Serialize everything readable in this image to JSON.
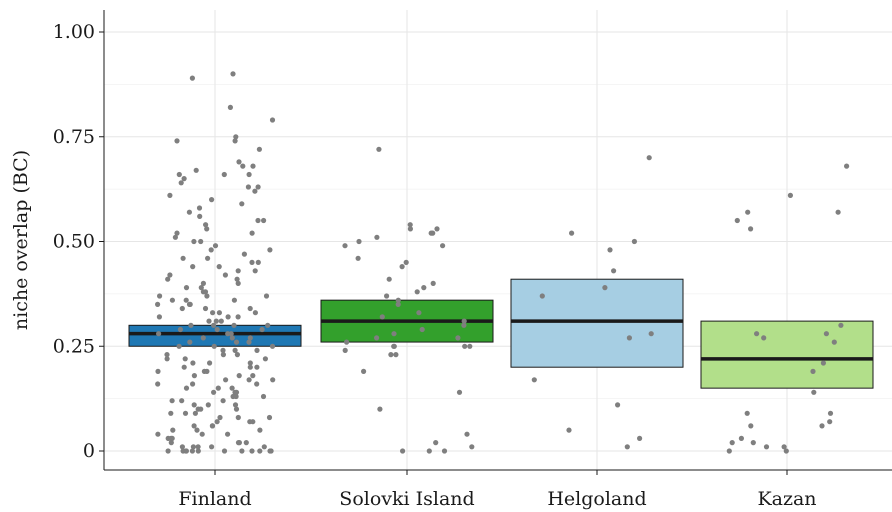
{
  "chart_data": {
    "type": "box",
    "title": "",
    "xlabel": "",
    "ylabel": "niche overlap (BC)",
    "ylim": [
      0,
      1
    ],
    "yticks": [
      {
        "value": 0,
        "label": "0"
      },
      {
        "value": 0.25,
        "label": "0.25"
      },
      {
        "value": 0.5,
        "label": "0.50"
      },
      {
        "value": 0.75,
        "label": "0.75"
      },
      {
        "value": 1.0,
        "label": "1.00"
      }
    ],
    "grid": true,
    "categories": [
      "Finland",
      "Solovki Island",
      "Helgoland",
      "Kazan"
    ],
    "series": [
      {
        "category": "Finland",
        "color": "#1f78b4",
        "q1": 0.25,
        "median": 0.28,
        "q3": 0.3,
        "points": [
          0.9,
          0.89,
          0.82,
          0.79,
          0.75,
          0.74,
          0.74,
          0.72,
          0.69,
          0.68,
          0.68,
          0.67,
          0.66,
          0.66,
          0.66,
          0.65,
          0.64,
          0.63,
          0.63,
          0.62,
          0.61,
          0.6,
          0.59,
          0.58,
          0.57,
          0.56,
          0.55,
          0.55,
          0.54,
          0.53,
          0.52,
          0.52,
          0.51,
          0.5,
          0.5,
          0.49,
          0.48,
          0.48,
          0.47,
          0.46,
          0.46,
          0.45,
          0.45,
          0.44,
          0.44,
          0.43,
          0.43,
          0.42,
          0.42,
          0.41,
          0.41,
          0.4,
          0.4,
          0.39,
          0.39,
          0.38,
          0.38,
          0.37,
          0.37,
          0.37,
          0.36,
          0.36,
          0.36,
          0.35,
          0.35,
          0.35,
          0.34,
          0.34,
          0.34,
          0.33,
          0.33,
          0.33,
          0.32,
          0.32,
          0.32,
          0.31,
          0.31,
          0.31,
          0.3,
          0.3,
          0.3,
          0.3,
          0.29,
          0.29,
          0.29,
          0.28,
          0.28,
          0.28,
          0.27,
          0.27,
          0.27,
          0.26,
          0.26,
          0.26,
          0.25,
          0.25,
          0.25,
          0.24,
          0.24,
          0.24,
          0.23,
          0.23,
          0.23,
          0.22,
          0.22,
          0.22,
          0.21,
          0.21,
          0.21,
          0.2,
          0.2,
          0.2,
          0.19,
          0.19,
          0.19,
          0.18,
          0.18,
          0.18,
          0.17,
          0.17,
          0.17,
          0.16,
          0.16,
          0.16,
          0.15,
          0.15,
          0.15,
          0.14,
          0.14,
          0.14,
          0.13,
          0.13,
          0.13,
          0.12,
          0.12,
          0.12,
          0.11,
          0.11,
          0.11,
          0.1,
          0.1,
          0.1,
          0.09,
          0.09,
          0.09,
          0.08,
          0.08,
          0.08,
          0.07,
          0.07,
          0.07,
          0.06,
          0.06,
          0.06,
          0.05,
          0.05,
          0.05,
          0.04,
          0.04,
          0.04,
          0.03,
          0.03,
          0.03,
          0.02,
          0.02,
          0.02,
          0.02,
          0.01,
          0.01,
          0.01,
          0.01,
          0.01,
          0.0,
          0.0,
          0.0,
          0.0,
          0.0,
          0.0,
          0.0,
          0.0,
          0.0,
          0.0,
          0.0,
          0.0
        ]
      },
      {
        "category": "Solovki Island",
        "color": "#33a02c",
        "q1": 0.26,
        "median": 0.31,
        "q3": 0.36,
        "points": [
          0.72,
          0.54,
          0.53,
          0.53,
          0.52,
          0.52,
          0.51,
          0.5,
          0.49,
          0.49,
          0.46,
          0.45,
          0.44,
          0.41,
          0.4,
          0.39,
          0.38,
          0.37,
          0.36,
          0.35,
          0.33,
          0.32,
          0.31,
          0.3,
          0.29,
          0.28,
          0.27,
          0.27,
          0.26,
          0.25,
          0.25,
          0.25,
          0.25,
          0.24,
          0.23,
          0.23,
          0.19,
          0.14,
          0.1,
          0.04,
          0.02,
          0.01,
          0.0,
          0.0,
          0.0
        ]
      },
      {
        "category": "Helgoland",
        "color": "#a6cee3",
        "q1": 0.2,
        "median": 0.31,
        "q3": 0.41,
        "points": [
          0.7,
          0.52,
          0.5,
          0.48,
          0.43,
          0.39,
          0.37,
          0.28,
          0.27,
          0.17,
          0.11,
          0.05,
          0.03,
          0.01
        ]
      },
      {
        "category": "Kazan",
        "color": "#b2df8a",
        "q1": 0.15,
        "median": 0.22,
        "q3": 0.31,
        "points": [
          0.68,
          0.61,
          0.57,
          0.57,
          0.55,
          0.53,
          0.3,
          0.28,
          0.28,
          0.27,
          0.26,
          0.21,
          0.19,
          0.14,
          0.09,
          0.09,
          0.07,
          0.06,
          0.06,
          0.03,
          0.02,
          0.02,
          0.01,
          0.01,
          0.0,
          0.0
        ]
      }
    ]
  }
}
